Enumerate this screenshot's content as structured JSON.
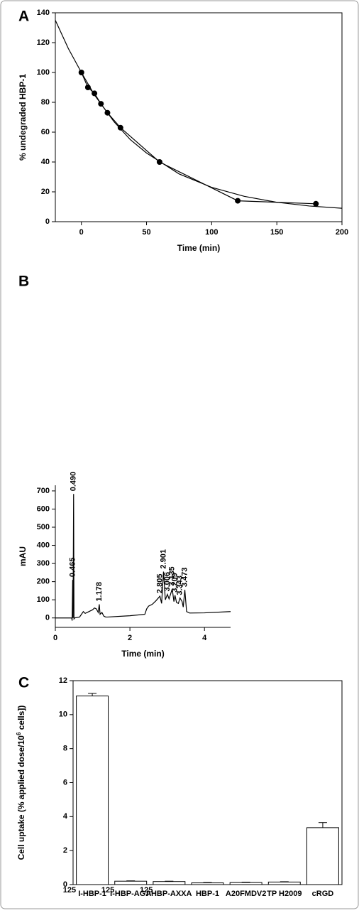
{
  "chart_data": [
    {
      "type": "line",
      "panel": "A",
      "xlabel": "Time (min)",
      "ylabel": "% undegraded HBP-1",
      "xlim": [
        -20,
        200
      ],
      "ylim": [
        0,
        140
      ],
      "xticks": [
        0,
        50,
        100,
        150,
        200
      ],
      "yticks": [
        0,
        20,
        40,
        60,
        80,
        100,
        120,
        140
      ],
      "frame": true,
      "series": [
        {
          "x": [
            0,
            5,
            10,
            15,
            20,
            30,
            60,
            120,
            180
          ],
          "values": [
            100,
            90,
            86,
            79,
            73,
            63,
            40,
            14,
            12
          ],
          "color": "#000000",
          "marker": true
        },
        {
          "x": [
            -20,
            -10,
            0,
            10,
            25,
            37.5,
            50,
            75,
            100,
            125,
            150,
            175,
            200
          ],
          "values": [
            135,
            116,
            100,
            85,
            67,
            55,
            46,
            32,
            23,
            17,
            13,
            10.5,
            9
          ],
          "color": "#000000",
          "marker": false
        }
      ]
    },
    {
      "type": "line",
      "panel": "B",
      "xlabel": "Time (min)",
      "ylabel": "mAU",
      "xlim": [
        0,
        4.7
      ],
      "ylim": [
        -52,
        731
      ],
      "xticks": [
        0,
        2,
        4
      ],
      "yticks": [
        0,
        100,
        200,
        300,
        400,
        500,
        600,
        700
      ],
      "frame": false,
      "series": [
        {
          "x": [
            0,
            0.44,
            0.45,
            0.465,
            0.475,
            0.49,
            0.5,
            0.52,
            0.65,
            0.7,
            0.75,
            0.8,
            0.9,
            1.0,
            1.05,
            1.1,
            1.15,
            1.178,
            1.2,
            1.25,
            1.3,
            1.35,
            1.4,
            2.0,
            2.4,
            2.45,
            2.5,
            2.6,
            2.7,
            2.805,
            2.85,
            2.901,
            2.95,
            3.006,
            3.05,
            3.135,
            3.18,
            3.209,
            3.25,
            3.3,
            3.343,
            3.4,
            3.43,
            3.473,
            3.52,
            3.6,
            4.0,
            4.7
          ],
          "values": [
            0,
            0,
            -15,
            210,
            0,
            683,
            -5,
            0,
            5,
            20,
            35,
            25,
            35,
            45,
            55,
            50,
            30,
            75,
            20,
            30,
            10,
            5,
            5,
            12,
            20,
            50,
            65,
            75,
            95,
            120,
            80,
            255,
            100,
            130,
            105,
            160,
            90,
            125,
            85,
            80,
            110,
            90,
            60,
            155,
            35,
            27,
            28,
            35
          ],
          "color": "#000000",
          "marker": false
        }
      ],
      "annotations": [
        {
          "x": 0.465,
          "y": 210,
          "label": "0.465"
        },
        {
          "x": 0.49,
          "y": 683,
          "label": "0.490"
        },
        {
          "x": 1.178,
          "y": 75,
          "label": "1.178"
        },
        {
          "x": 2.805,
          "y": 120,
          "label": "2.805"
        },
        {
          "x": 2.901,
          "y": 255,
          "label": "2.901"
        },
        {
          "x": 3.006,
          "y": 130,
          "label": "3.006"
        },
        {
          "x": 3.135,
          "y": 160,
          "label": "3.135"
        },
        {
          "x": 3.209,
          "y": 125,
          "label": "3.209"
        },
        {
          "x": 3.343,
          "y": 110,
          "label": "3.343"
        },
        {
          "x": 3.473,
          "y": 155,
          "label": "3.473"
        }
      ]
    },
    {
      "type": "bar",
      "panel": "C",
      "ylabel": [
        "Cell uptake (% applied dose/10",
        "6",
        " cells])"
      ],
      "categories": [
        "I-HBP-1",
        "I-HBP-AGA",
        "I-HBP-AXXA",
        "HBP-1",
        "A20FMDV2",
        "TP H2009",
        "cRGD"
      ],
      "category_superscripts": [
        "125",
        "125",
        "125",
        null,
        null,
        null,
        null
      ],
      "values": [
        11.1,
        0.2,
        0.18,
        0.1,
        0.12,
        0.15,
        3.35
      ],
      "errors": [
        0.15,
        0.02,
        0.02,
        0.02,
        0.02,
        0.02,
        0.3
      ],
      "color": "#ffffff",
      "ylim": [
        0,
        12
      ],
      "yticks": [
        0,
        2,
        4,
        6,
        8,
        10,
        12
      ],
      "frame": true
    }
  ]
}
